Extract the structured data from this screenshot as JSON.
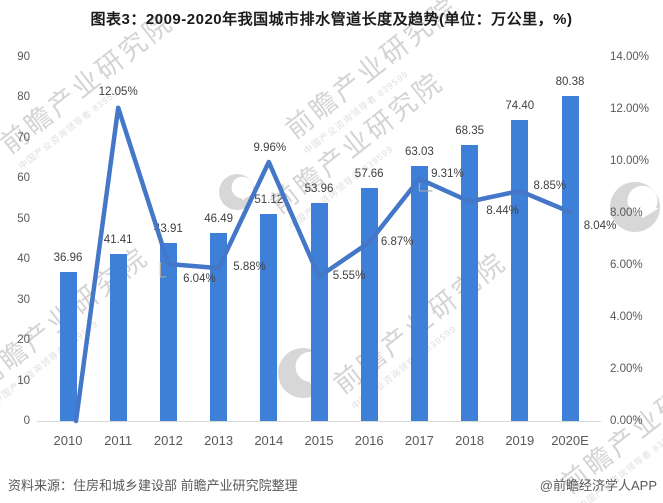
{
  "footer": {
    "source": "资料来源：住房和城乡建设部 前瞻产业研究院整理",
    "credit": "@前瞻经济学人APP"
  },
  "watermark": {
    "text": "前瞻产业研究院",
    "subtext": "中国产业咨询领导者 839599"
  },
  "colors": {
    "bar": "#3E7FD8",
    "line": "#4577C8",
    "title": "#1A1A1A",
    "data_label": "#404040",
    "axis_text": "#595959",
    "axis_line": "#D9D9D9",
    "leader": "#A9A9A9",
    "watermark": "#D4D4D4"
  },
  "chart_data": {
    "type": "bar+line",
    "title": "图表3：2009-2020年我国城市排水管道长度及趋势(单位：万公里，%)",
    "categories": [
      "2010",
      "2011",
      "2012",
      "2013",
      "2014",
      "2015",
      "2016",
      "2017",
      "2018",
      "2019",
      "2020E"
    ],
    "series": [
      {
        "id": "pipe-length-bar",
        "type": "bar",
        "axis": "left",
        "unit": "万公里",
        "values": [
          36.96,
          41.41,
          43.91,
          46.49,
          51.12,
          53.96,
          57.66,
          63.03,
          68.35,
          74.4,
          80.38
        ],
        "labels": [
          "36.96",
          "41.41",
          "43.91",
          "46.49",
          "51.12",
          "53.96",
          "57.66",
          "63.03",
          "68.35",
          "74.40",
          "80.38"
        ]
      },
      {
        "id": "growth-rate-line",
        "type": "line",
        "axis": "right",
        "unit": "%",
        "values": [
          null,
          12.05,
          6.04,
          5.88,
          9.96,
          5.55,
          6.87,
          9.31,
          8.44,
          8.85,
          8.04
        ],
        "labels": [
          null,
          "12.05%",
          "6.04%",
          "5.88%",
          "9.96%",
          "5.55%",
          "6.87%",
          "9.31%",
          "8.44%",
          "8.85%",
          "8.04%"
        ]
      }
    ],
    "left_axis": {
      "min": 0,
      "max": 90,
      "step": 10,
      "ticks": [
        "90",
        "80",
        "70",
        "60",
        "50",
        "40",
        "30",
        "20",
        "10",
        "0"
      ]
    },
    "right_axis": {
      "min": 0,
      "max": 14,
      "step": 2,
      "ticks": [
        "14.00%",
        "12.00%",
        "10.00%",
        "8.00%",
        "6.00%",
        "4.00%",
        "2.00%",
        "0.00%"
      ]
    },
    "grid": false,
    "legend": false
  }
}
